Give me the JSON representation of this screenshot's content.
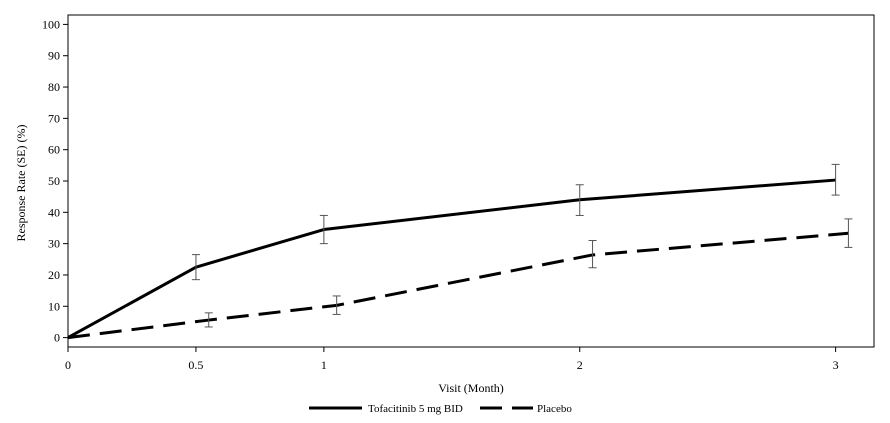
{
  "chart_data": {
    "type": "line",
    "xlabel": "Visit (Month)",
    "ylabel": "Response Rate (SE) (%)",
    "xlim": [
      0,
      3.15
    ],
    "ylim": [
      -3,
      103
    ],
    "x_ticks": [
      0,
      0.5,
      1,
      2,
      3
    ],
    "x_tick_labels": [
      "0",
      "0.5",
      "1",
      "2",
      "3"
    ],
    "y_ticks": [
      0,
      10,
      20,
      30,
      40,
      50,
      60,
      70,
      80,
      90,
      100
    ],
    "y_tick_labels": [
      "0",
      "10",
      "20",
      "30",
      "40",
      "50",
      "60",
      "70",
      "80",
      "90",
      "100"
    ],
    "grid": false,
    "legend_position": "bottom",
    "series": [
      {
        "name": "Tofacitinib 5 mg BID",
        "style": "solid",
        "color": "#000000",
        "points": [
          {
            "x": 0,
            "y": 0,
            "se_low": 0,
            "se_high": 0
          },
          {
            "x": 0.5,
            "y": 22.5,
            "se_low": 18.5,
            "se_high": 26.5
          },
          {
            "x": 1,
            "y": 34.5,
            "se_low": 30,
            "se_high": 39
          },
          {
            "x": 2,
            "y": 44,
            "se_low": 39,
            "se_high": 48.8
          },
          {
            "x": 3,
            "y": 50.3,
            "se_low": 45.5,
            "se_high": 55.3
          }
        ]
      },
      {
        "name": "Placebo",
        "style": "dashed",
        "color": "#000000",
        "points": [
          {
            "x": 0,
            "y": 0,
            "se_low": 0,
            "se_high": 0
          },
          {
            "x": 0.55,
            "y": 5.6,
            "se_low": 3.4,
            "se_high": 7.9
          },
          {
            "x": 1.05,
            "y": 10.3,
            "se_low": 7.4,
            "se_high": 13.3
          },
          {
            "x": 2.05,
            "y": 26.4,
            "se_low": 22.3,
            "se_high": 31
          },
          {
            "x": 3.05,
            "y": 33.3,
            "se_low": 28.8,
            "se_high": 37.9
          }
        ]
      }
    ]
  }
}
